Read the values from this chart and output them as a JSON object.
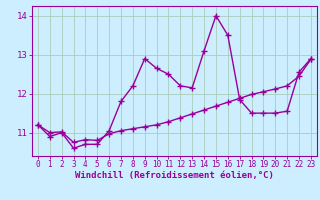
{
  "x_values": [
    0,
    1,
    2,
    3,
    4,
    5,
    6,
    7,
    8,
    9,
    10,
    11,
    12,
    13,
    14,
    15,
    16,
    17,
    18,
    19,
    20,
    21,
    22,
    23
  ],
  "y_zigzag": [
    11.2,
    10.9,
    11.0,
    10.6,
    10.7,
    10.7,
    11.05,
    11.8,
    12.2,
    12.9,
    12.65,
    12.5,
    12.2,
    12.15,
    13.1,
    14.0,
    13.5,
    11.85,
    11.5,
    11.5,
    11.5,
    11.55,
    12.55,
    12.9
  ],
  "y_trend": [
    11.2,
    11.0,
    11.02,
    10.75,
    10.82,
    10.8,
    10.97,
    11.05,
    11.1,
    11.15,
    11.2,
    11.28,
    11.38,
    11.48,
    11.58,
    11.68,
    11.78,
    11.88,
    11.98,
    12.05,
    12.12,
    12.2,
    12.45,
    12.88
  ],
  "line_color": "#990099",
  "bg_color": "#cceeff",
  "grid_color": "#aaccbb",
  "xlabel": "Windchill (Refroidissement éolien,°C)",
  "xlim": [
    -0.5,
    23.5
  ],
  "ylim": [
    10.4,
    14.25
  ],
  "yticks": [
    11,
    12,
    13,
    14
  ],
  "xticks": [
    0,
    1,
    2,
    3,
    4,
    5,
    6,
    7,
    8,
    9,
    10,
    11,
    12,
    13,
    14,
    15,
    16,
    17,
    18,
    19,
    20,
    21,
    22,
    23
  ],
  "marker": "+",
  "markersize": 4,
  "linewidth": 1.0,
  "tick_fontsize": 5.5,
  "xlabel_fontsize": 6.5
}
